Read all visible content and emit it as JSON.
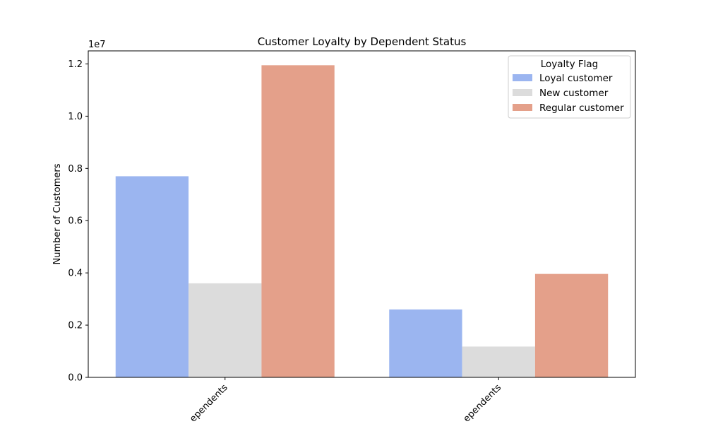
{
  "chart_data": {
    "type": "bar",
    "title": "Customer Loyalty by Dependent Status",
    "xlabel": "",
    "ylabel": "Number of Customers",
    "y_scale_label": "1e7",
    "y_scale_factor": 10000000,
    "ylim": [
      0,
      12500000
    ],
    "yticks": [
      0,
      2000000,
      4000000,
      6000000,
      8000000,
      10000000,
      12000000
    ],
    "ytick_labels": [
      "0.0",
      "0.2",
      "0.4",
      "0.6",
      "0.8",
      "1.0",
      "1.2"
    ],
    "categories": [
      "Has Dependents",
      "No Dependents"
    ],
    "category_labels": [
      "ependents",
      "ependents"
    ],
    "xtick_rotation": 45,
    "grid": false,
    "legend": {
      "title": "Loyalty Flag",
      "position": "top-right"
    },
    "series": [
      {
        "name": "Loyal customer",
        "color": "#9bb5f0",
        "values": [
          7700000,
          2600000
        ]
      },
      {
        "name": "New customer",
        "color": "#dcdcdc",
        "values": [
          3600000,
          1180000
        ]
      },
      {
        "name": "Regular customer",
        "color": "#e4a08a",
        "values": [
          11950000,
          3960000
        ]
      }
    ]
  }
}
